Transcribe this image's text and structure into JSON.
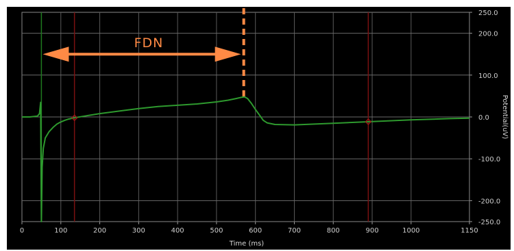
{
  "chart_data": {
    "type": "line",
    "xlabel": "Time (ms)",
    "ylabel": "Potential(uV)",
    "xlim": [
      0,
      1150
    ],
    "ylim": [
      -250,
      250
    ],
    "x_ticks": [
      0,
      100,
      200,
      300,
      400,
      500,
      600,
      700,
      800,
      900,
      1000,
      1150
    ],
    "y_ticks": [
      250.0,
      200.0,
      100.0,
      0.0,
      -100.0,
      -200.0,
      -250.0
    ],
    "y_tick_labels": [
      "250.0",
      "200.0",
      "100.0",
      "0.0",
      "-100.0",
      "-200.0",
      "-250.0"
    ],
    "grid": true,
    "background": "#000000",
    "series": [
      {
        "color": "#2e9a2e",
        "x": [
          0,
          20,
          40,
          45,
          48,
          50,
          52,
          55,
          60,
          70,
          80,
          90,
          100,
          110,
          120,
          135,
          160,
          200,
          250,
          300,
          350,
          400,
          450,
          500,
          530,
          550,
          565,
          572,
          580,
          590,
          600,
          610,
          620,
          630,
          650,
          700,
          800,
          900,
          1000,
          1100,
          1150
        ],
        "y": [
          0,
          0,
          2,
          8,
          35,
          -250,
          -120,
          -75,
          -50,
          -35,
          -25,
          -17,
          -12,
          -8,
          -5,
          -2,
          2,
          8,
          14,
          20,
          25,
          28,
          31,
          36,
          40,
          44,
          47,
          48,
          44,
          32,
          18,
          5,
          -8,
          -14,
          -18,
          -19,
          -15,
          -11,
          -7,
          -4,
          -3
        ]
      }
    ],
    "vertical_markers": [
      {
        "x": 50,
        "color": "#1f7a1f"
      },
      {
        "x": 135,
        "color": "#7a1010"
      },
      {
        "x": 570,
        "color": "#ff8a45",
        "style": "dashed"
      },
      {
        "x": 890,
        "color": "#7a1010"
      }
    ],
    "annotations": [
      {
        "text": "FDN",
        "from_x": 50,
        "to_x": 570,
        "y": 150,
        "color": "#ff8a45"
      }
    ]
  }
}
